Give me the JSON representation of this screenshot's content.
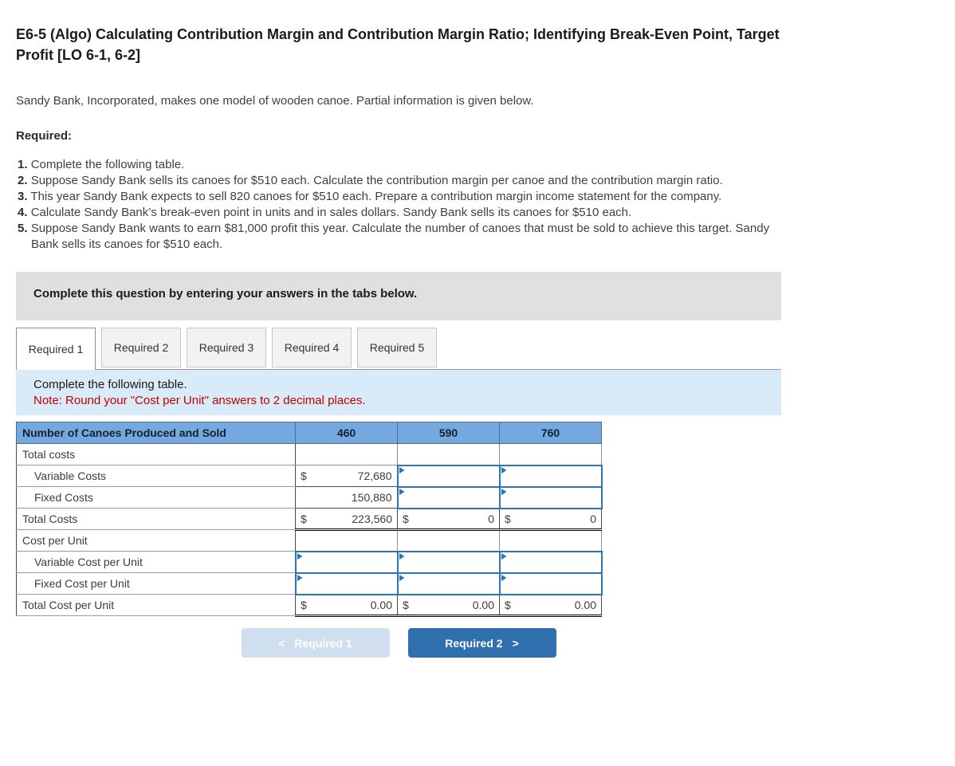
{
  "title": "E6-5 (Algo) Calculating Contribution Margin and Contribution Margin Ratio; Identifying Break-Even Point, Target Profit [LO 6-1, 6-2]",
  "intro": "Sandy Bank, Incorporated, makes one model of wooden canoe. Partial information is given below.",
  "required_label": "Required:",
  "required_items": [
    {
      "num": "1.",
      "text": "Complete the following table."
    },
    {
      "num": "2.",
      "text": "Suppose Sandy Bank sells its canoes for $510 each. Calculate the contribution margin per canoe and the contribution margin ratio."
    },
    {
      "num": "3.",
      "text": "This year Sandy Bank expects to sell 820 canoes for $510 each. Prepare a contribution margin income statement for the company."
    },
    {
      "num": "4.",
      "text": "Calculate Sandy Bank’s break-even point in units and in sales dollars. Sandy Bank sells its canoes for $510 each."
    },
    {
      "num": "5.",
      "text": "Suppose Sandy Bank wants to earn $81,000 profit this year. Calculate the number of canoes that must be sold to achieve this target. Sandy Bank sells its canoes for $510 each."
    }
  ],
  "panel": {
    "instruction": "Complete this question by entering your answers in the tabs below.",
    "tabs": [
      {
        "label": "Required 1",
        "active": true
      },
      {
        "label": "Required 2",
        "active": false
      },
      {
        "label": "Required 3",
        "active": false
      },
      {
        "label": "Required 4",
        "active": false
      },
      {
        "label": "Required 5",
        "active": false
      }
    ],
    "note_line1": "Complete the following table.",
    "note_line2": "Note: Round your \"Cost per Unit\" answers to 2 decimal places."
  },
  "table": {
    "header": {
      "label": "Number of Canoes Produced and Sold",
      "cols": [
        "460",
        "590",
        "760"
      ]
    },
    "rows": [
      {
        "label": "Total costs",
        "cells": [
          {},
          {},
          {}
        ]
      },
      {
        "label": "Variable Costs",
        "cells": [
          {
            "prefix": "$",
            "value": "72,680"
          },
          {},
          {}
        ]
      },
      {
        "label": "Fixed Costs",
        "cells": [
          {
            "value": "150,880"
          },
          {},
          {}
        ]
      },
      {
        "label": "Total Costs",
        "cells": [
          {
            "prefix": "$",
            "value": "223,560"
          },
          {
            "prefix": "$",
            "value": "0"
          },
          {
            "prefix": "$",
            "value": "0"
          }
        ]
      },
      {
        "label": "Cost per Unit",
        "cells": [
          {},
          {},
          {}
        ]
      },
      {
        "label": "Variable Cost per Unit",
        "cells": [
          {},
          {},
          {}
        ]
      },
      {
        "label": "Fixed Cost per Unit",
        "cells": [
          {},
          {},
          {}
        ]
      },
      {
        "label": "Total Cost per Unit",
        "cells": [
          {
            "prefix": "$",
            "value": "0.00"
          },
          {
            "prefix": "$",
            "value": "0.00"
          },
          {
            "prefix": "$",
            "value": "0.00"
          }
        ]
      }
    ]
  },
  "footer_nav": {
    "prev_chevron": "<",
    "prev_label": "Required 1",
    "next_label": "Required 2",
    "next_chevron": ">"
  },
  "colors": {
    "table_header_blue": "#74a9df",
    "input_border_blue": "#2e75b6",
    "note_red": "#c00000",
    "info_box_blue": "#d9eaf8",
    "instruction_box_gray": "#e0e0e0",
    "next_button_blue": "#2f6fad",
    "prev_button_blue": "#cfdff0"
  }
}
